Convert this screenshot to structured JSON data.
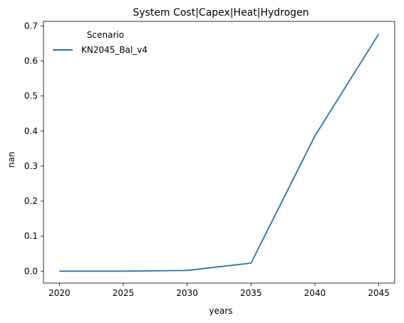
{
  "chart_data": {
    "type": "line",
    "title": "System Cost|Capex|Heat|Hydrogen",
    "xlabel": "years",
    "ylabel": "nan",
    "x": [
      2020,
      2025,
      2030,
      2035,
      2040,
      2045
    ],
    "xticks": [
      "2020",
      "2025",
      "2030",
      "2035",
      "2040",
      "2045"
    ],
    "yticks": [
      "0.0",
      "0.1",
      "0.2",
      "0.3",
      "0.4",
      "0.5",
      "0.6",
      "0.7"
    ],
    "ylim": [
      -0.034,
      0.713
    ],
    "xlim": [
      2018.75,
      2046.25
    ],
    "grid": false,
    "legend": {
      "title": "Scenario",
      "placement": "top-left"
    },
    "series": [
      {
        "name": "KN2045_Bal_v4",
        "color": "#1f77b4",
        "values": [
          0.0,
          0.0,
          0.002,
          0.023,
          0.386,
          0.677
        ]
      }
    ]
  }
}
